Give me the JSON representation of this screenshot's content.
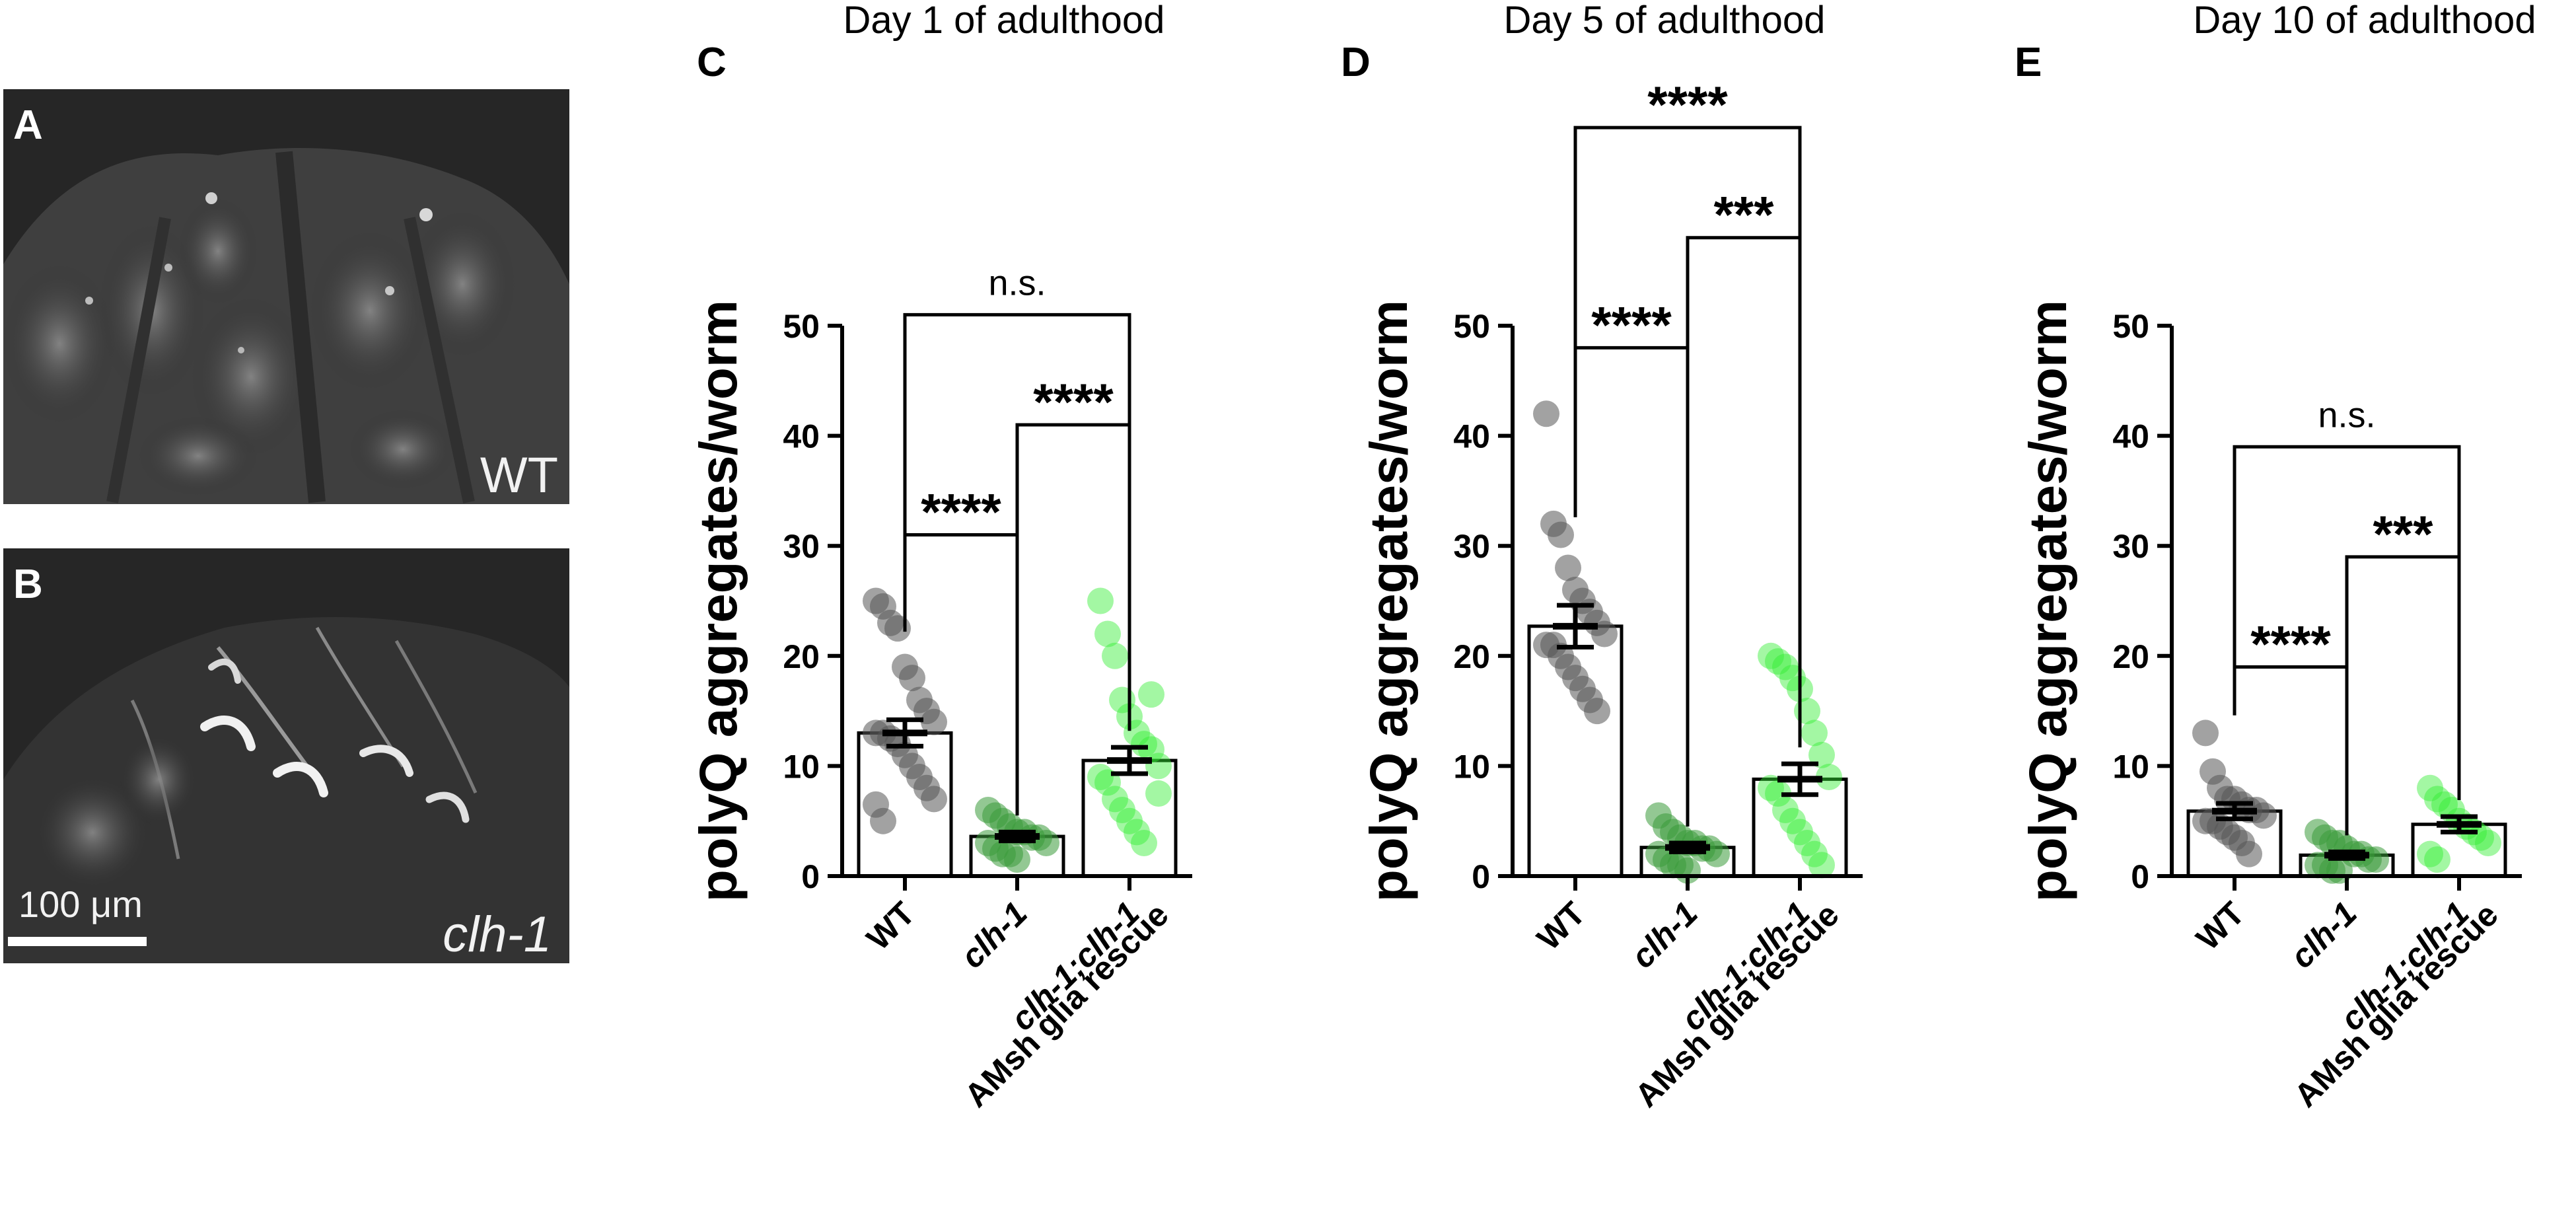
{
  "images": [
    {
      "letter": "A",
      "label": "WT"
    },
    {
      "letter": "B",
      "label": "clh-1",
      "scale_bar": "100 μm"
    }
  ],
  "colors": {
    "wt": "#555555",
    "clh1": "#3a9a3a",
    "rescue": "#33ee33",
    "axis": "#000000"
  },
  "chart_data": [
    {
      "type": "bar",
      "letter": "C",
      "title": "Day 1 of adulthood",
      "ylabel": "polyQ aggregates/worm",
      "ylim": [
        0,
        50
      ],
      "yticks": [
        "0",
        "10",
        "20",
        "30",
        "40",
        "50"
      ],
      "categories": [
        "WT",
        "clh-1",
        "clh-1;clh-1"
      ],
      "category_sublabel": [
        "",
        "",
        "AMsh glia rescue"
      ],
      "means": [
        13,
        3.6,
        10.5
      ],
      "sem": [
        1.2,
        0.4,
        1.2
      ],
      "points": [
        [
          25,
          24.5,
          23,
          22.5,
          19,
          18,
          16,
          15,
          14,
          13,
          13,
          12.5,
          12,
          11,
          10,
          9,
          8,
          7,
          6.5,
          5
        ],
        [
          6,
          5.5,
          5,
          4.5,
          4,
          4,
          3.5,
          3.5,
          3,
          3,
          2.5,
          2,
          2,
          1.5
        ],
        [
          25,
          22,
          20,
          16,
          14.5,
          13,
          12,
          11.5,
          10,
          9,
          8.5,
          7,
          6,
          5,
          4,
          3,
          16.5,
          7.5
        ]
      ],
      "comparisons": [
        {
          "from": 0,
          "to": 1,
          "label": "****",
          "y": 31
        },
        {
          "from": 1,
          "to": 2,
          "label": "****",
          "y": 41
        },
        {
          "from": 0,
          "to": 2,
          "label": "n.s.",
          "y": 51
        }
      ]
    },
    {
      "type": "bar",
      "letter": "D",
      "title": "Day 5 of adulthood",
      "ylabel": "polyQ aggregates/worm",
      "ylim": [
        0,
        50
      ],
      "yticks": [
        "0",
        "10",
        "20",
        "30",
        "40",
        "50"
      ],
      "categories": [
        "WT",
        "clh-1",
        "clh-1;clh-1"
      ],
      "category_sublabel": [
        "",
        "",
        "AMsh glia rescue"
      ],
      "means": [
        22.7,
        2.6,
        8.8
      ],
      "sem": [
        1.9,
        0.4,
        1.4
      ],
      "points": [
        [
          42,
          32,
          31,
          28,
          26,
          25,
          24,
          23,
          22,
          21,
          21,
          20,
          19,
          18,
          17,
          16,
          15
        ],
        [
          5.5,
          4.5,
          4,
          3.5,
          3,
          3,
          2.5,
          2.5,
          2,
          2,
          1.5,
          1,
          1,
          0.5
        ],
        [
          20,
          19.5,
          19,
          18,
          17,
          15,
          13,
          11,
          9,
          8,
          7.5,
          6,
          5,
          4,
          3,
          2,
          1
        ]
      ],
      "comparisons": [
        {
          "from": 0,
          "to": 1,
          "label": "****",
          "y": 48
        },
        {
          "from": 1,
          "to": 2,
          "label": "***",
          "y": 58
        },
        {
          "from": 0,
          "to": 2,
          "label": "****",
          "y": 68
        }
      ]
    },
    {
      "type": "bar",
      "letter": "E",
      "title": "Day 10 of adulthood",
      "ylabel": "polyQ aggregates/worm",
      "ylim": [
        0,
        50
      ],
      "yticks": [
        "0",
        "10",
        "20",
        "30",
        "40",
        "50"
      ],
      "categories": [
        "WT",
        "clh-1",
        "clh-1;clh-1"
      ],
      "category_sublabel": [
        "",
        "",
        "AMsh glia rescue"
      ],
      "means": [
        5.9,
        1.9,
        4.7
      ],
      "sem": [
        0.7,
        0.3,
        0.7
      ],
      "points": [
        [
          13,
          9.5,
          8,
          7,
          7,
          6.5,
          6,
          6,
          5.5,
          5,
          5,
          4.5,
          4,
          3.5,
          3,
          2
        ],
        [
          4,
          3.5,
          3,
          3,
          2.5,
          2,
          2,
          1.5,
          1.5,
          1,
          1,
          0.5,
          0.5
        ],
        [
          8,
          7,
          6.5,
          6,
          5,
          4.5,
          4,
          3.5,
          3,
          2,
          1.5
        ]
      ],
      "comparisons": [
        {
          "from": 0,
          "to": 1,
          "label": "****",
          "y": 19
        },
        {
          "from": 1,
          "to": 2,
          "label": "***",
          "y": 29
        },
        {
          "from": 0,
          "to": 2,
          "label": "n.s.",
          "y": 39
        }
      ]
    }
  ]
}
